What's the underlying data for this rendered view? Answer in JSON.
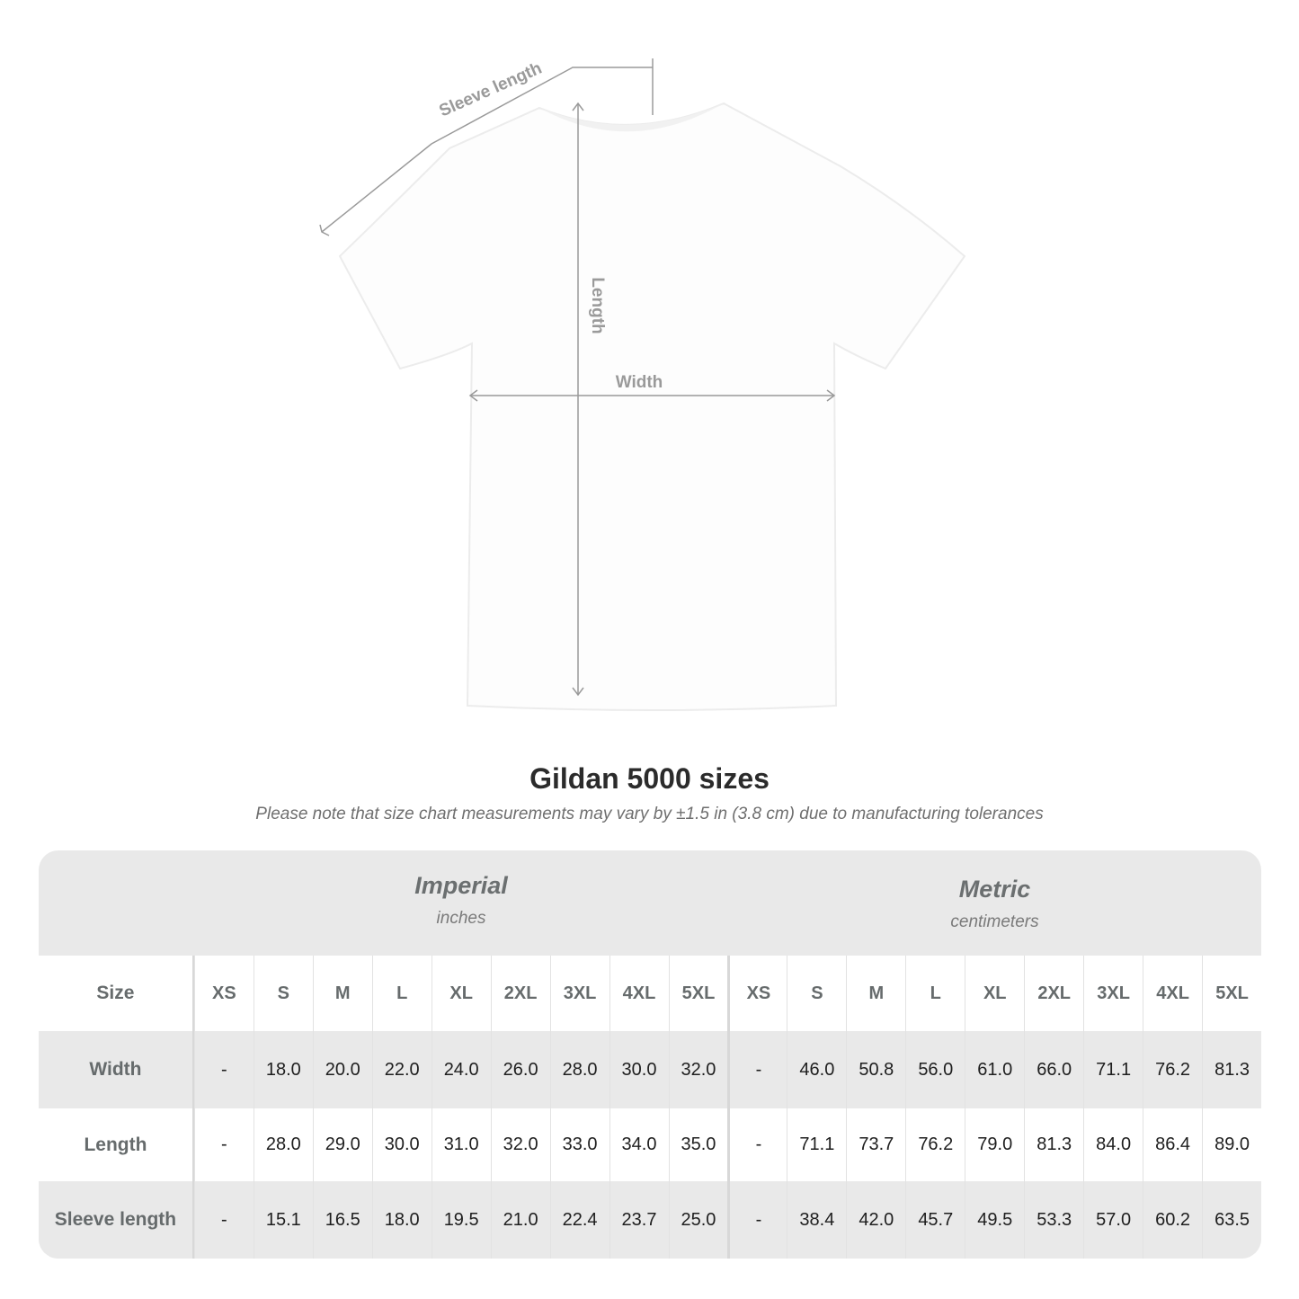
{
  "diagram": {
    "labels": {
      "sleeve": "Sleeve length",
      "length": "Length",
      "width": "Width"
    }
  },
  "title": "Gildan 5000 sizes",
  "note": "Please note that size chart measurements may vary by ±1.5 in (3.8 cm) due to manufacturing tolerances",
  "table": {
    "imperial": {
      "label": "Imperial",
      "unit": "inches"
    },
    "metric": {
      "label": "Metric",
      "unit": "centimeters"
    },
    "size_label": "Size",
    "sizes": [
      "XS",
      "S",
      "M",
      "L",
      "XL",
      "2XL",
      "3XL",
      "4XL",
      "5XL"
    ],
    "rows": [
      {
        "label": "Width",
        "imperial": [
          "-",
          "18.0",
          "20.0",
          "22.0",
          "24.0",
          "26.0",
          "28.0",
          "30.0",
          "32.0"
        ],
        "metric": [
          "-",
          "46.0",
          "50.8",
          "56.0",
          "61.0",
          "66.0",
          "71.1",
          "76.2",
          "81.3"
        ]
      },
      {
        "label": "Length",
        "imperial": [
          "-",
          "28.0",
          "29.0",
          "30.0",
          "31.0",
          "32.0",
          "33.0",
          "34.0",
          "35.0"
        ],
        "metric": [
          "-",
          "71.1",
          "73.7",
          "76.2",
          "79.0",
          "81.3",
          "84.0",
          "86.4",
          "89.0"
        ]
      },
      {
        "label": "Sleeve length",
        "imperial": [
          "-",
          "15.1",
          "16.5",
          "18.0",
          "19.5",
          "21.0",
          "22.4",
          "23.7",
          "25.0"
        ],
        "metric": [
          "-",
          "38.4",
          "42.0",
          "45.7",
          "49.5",
          "53.3",
          "57.0",
          "60.2",
          "63.5"
        ]
      }
    ]
  }
}
